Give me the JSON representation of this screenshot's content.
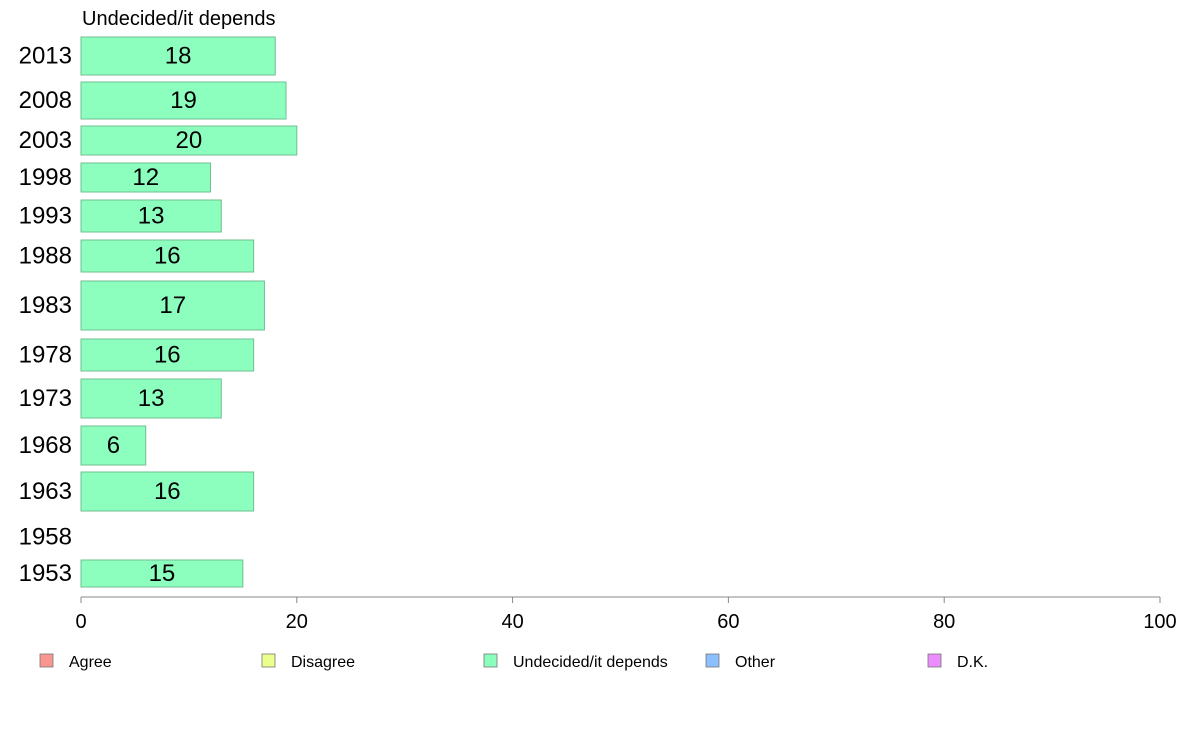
{
  "chart_data": {
    "type": "bar",
    "orientation": "horizontal",
    "title": "Undecided/it depends",
    "categories": [
      "2013",
      "2008",
      "2003",
      "1998",
      "1993",
      "1988",
      "1983",
      "1978",
      "1973",
      "1968",
      "1963",
      "1958",
      "1953"
    ],
    "series": [
      {
        "name": "Undecided/it depends",
        "values": [
          18,
          19,
          20,
          12,
          13,
          16,
          17,
          16,
          13,
          6,
          16,
          null,
          15
        ],
        "color": "#8cffbf"
      }
    ],
    "data_labels": [
      "18",
      "19",
      "20",
      "12",
      "13",
      "16",
      "17",
      "16",
      "13",
      "6",
      "16",
      "",
      "15"
    ],
    "xlim": [
      0,
      100
    ],
    "x_ticks": [
      0,
      20,
      40,
      60,
      80,
      100
    ],
    "x_tick_labels": [
      "0",
      "20",
      "40",
      "60",
      "80",
      "100"
    ],
    "grid": false,
    "legend_position": "bottom",
    "legend": [
      {
        "label": "Agree",
        "color": "#f8968f"
      },
      {
        "label": "Disagree",
        "color": "#eaff8c"
      },
      {
        "label": "Undecided/it depends",
        "color": "#8cffbf"
      },
      {
        "label": "Other",
        "color": "#8cbfff"
      },
      {
        "label": "D.K.",
        "color": "#eb8cff"
      }
    ]
  }
}
